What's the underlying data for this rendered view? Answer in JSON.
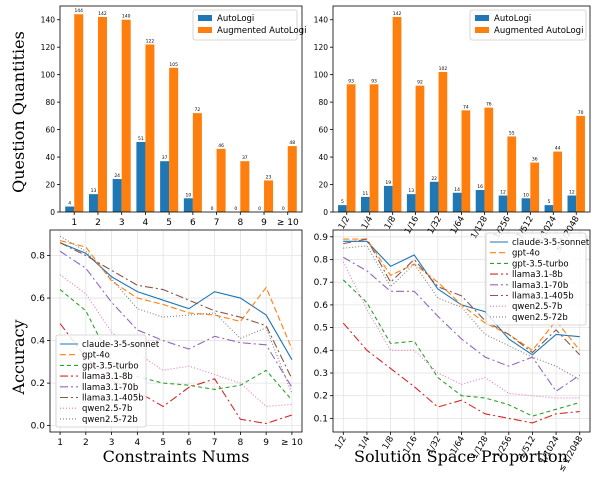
{
  "figure": {
    "shared_ylabel_top": "Question Quantities",
    "shared_ylabel_bottom": "Accuracy"
  },
  "chart_data": [
    {
      "type": "bar",
      "panel": "top-left",
      "categories": [
        "1",
        "2",
        "3",
        "4",
        "5",
        "6",
        "7",
        "8",
        "9",
        "≥ 10"
      ],
      "series": [
        {
          "name": "AutoLogi",
          "color": "#1f77b4",
          "values": [
            4,
            13,
            24,
            51,
            37,
            10,
            0,
            0,
            0,
            0
          ]
        },
        {
          "name": "Augmented AutoLogi",
          "color": "#ff7f0e",
          "values": [
            144,
            142,
            140,
            122,
            105,
            72,
            46,
            37,
            23,
            48
          ]
        }
      ],
      "ylim": [
        0,
        150
      ],
      "yticks": [
        0,
        20,
        40,
        60,
        80,
        100,
        120,
        140
      ],
      "legend": "top-right",
      "grid": false,
      "xlabel": "",
      "ylabel": ""
    },
    {
      "type": "bar",
      "panel": "top-right",
      "categories": [
        "1/2",
        "1/4",
        "1/8",
        "1/16",
        "1/32",
        "1/64",
        "1/128",
        "1/256",
        "1/512",
        "1/1024",
        "≤ 1/2048"
      ],
      "series": [
        {
          "name": "AutoLogi",
          "color": "#1f77b4",
          "values": [
            5,
            11,
            19,
            13,
            22,
            14,
            16,
            12,
            10,
            5,
            12
          ]
        },
        {
          "name": "Augmented AutoLogi",
          "color": "#ff7f0e",
          "values": [
            93,
            93,
            142,
            92,
            102,
            74,
            76,
            55,
            36,
            44,
            70
          ]
        }
      ],
      "ylim": [
        0,
        150
      ],
      "yticks": [
        0,
        20,
        40,
        60,
        80,
        100,
        120,
        140
      ],
      "legend": "top-right",
      "grid": false,
      "xlabel": "",
      "ylabel": ""
    },
    {
      "type": "line",
      "panel": "bottom-left",
      "x": [
        "1",
        "2",
        "3",
        "4",
        "5",
        "6",
        "7",
        "8",
        "9",
        "≥ 10"
      ],
      "series": [
        {
          "name": "claude-3-5-sonnet",
          "color": "#1f77b4",
          "dash": "",
          "values": [
            0.86,
            0.81,
            0.7,
            0.63,
            0.59,
            0.55,
            0.63,
            0.6,
            0.52,
            0.31
          ]
        },
        {
          "name": "gpt-4o",
          "color": "#ff7f0e",
          "dash": "6,3",
          "values": [
            0.87,
            0.84,
            0.68,
            0.6,
            0.57,
            0.53,
            0.52,
            0.49,
            0.65,
            0.36
          ]
        },
        {
          "name": "gpt-3.5-turbo",
          "color": "#2ca02c",
          "dash": "4,3",
          "values": [
            0.64,
            0.54,
            0.3,
            0.23,
            0.2,
            0.19,
            0.17,
            0.19,
            0.26,
            0.12
          ]
        },
        {
          "name": "llama3.1-8b",
          "color": "#d62728",
          "dash": "8,3,2,3",
          "values": [
            0.48,
            0.32,
            0.21,
            0.16,
            0.09,
            0.18,
            0.22,
            0.03,
            0.01,
            0.05
          ]
        },
        {
          "name": "llama3.1-70b",
          "color": "#9467bd",
          "dash": "8,3,2,3",
          "values": [
            0.82,
            0.74,
            0.58,
            0.45,
            0.4,
            0.36,
            0.42,
            0.39,
            0.38,
            0.18
          ]
        },
        {
          "name": "llama3.1-405b",
          "color": "#8c564b",
          "dash": "8,3,2,3",
          "values": [
            0.86,
            0.8,
            0.73,
            0.66,
            0.64,
            0.59,
            0.54,
            0.51,
            0.47,
            0.22
          ]
        },
        {
          "name": "qwen2.5-7b",
          "color": "#e377c2",
          "dash": "1,2",
          "values": [
            0.71,
            0.62,
            0.44,
            0.34,
            0.26,
            0.28,
            0.24,
            0.2,
            0.09,
            0.1
          ]
        },
        {
          "name": "qwen2.5-72b",
          "color": "#7f7f7f",
          "dash": "1,2",
          "values": [
            0.89,
            0.82,
            0.69,
            0.55,
            0.51,
            0.52,
            0.53,
            0.41,
            0.46,
            0.15
          ]
        }
      ],
      "ylim": [
        -0.03,
        0.92
      ],
      "yticks": [
        0.0,
        0.2,
        0.4,
        0.6,
        0.8
      ],
      "ytick_labels": [
        "0.0",
        "0.2",
        "0.4",
        "0.6",
        "0.8"
      ],
      "legend": "lower-left",
      "grid": true,
      "xlabel": "Constraints Nums",
      "ylabel": "Accuracy"
    },
    {
      "type": "line",
      "panel": "bottom-right",
      "x": [
        "1/2",
        "1/4",
        "1/8",
        "1/16",
        "1/32",
        "1/64",
        "1/128",
        "1/256",
        "1/512",
        "1/1024",
        "≤ 1/2048"
      ],
      "series": [
        {
          "name": "claude-3-5-sonnet",
          "color": "#1f77b4",
          "dash": "",
          "values": [
            0.88,
            0.88,
            0.77,
            0.82,
            0.67,
            0.6,
            0.57,
            0.45,
            0.38,
            0.47,
            0.46
          ]
        },
        {
          "name": "gpt-4o",
          "color": "#ff7f0e",
          "dash": "6,3",
          "values": [
            0.89,
            0.89,
            0.73,
            0.78,
            0.7,
            0.6,
            0.52,
            0.47,
            0.4,
            0.53,
            0.4
          ]
        },
        {
          "name": "gpt-3.5-turbo",
          "color": "#2ca02c",
          "dash": "4,3",
          "values": [
            0.71,
            0.61,
            0.43,
            0.44,
            0.28,
            0.2,
            0.19,
            0.16,
            0.11,
            0.14,
            0.17
          ]
        },
        {
          "name": "llama3.1-8b",
          "color": "#d62728",
          "dash": "8,3,2,3",
          "values": [
            0.52,
            0.4,
            0.32,
            0.24,
            0.15,
            0.18,
            0.12,
            0.1,
            0.08,
            0.12,
            0.13
          ]
        },
        {
          "name": "llama3.1-70b",
          "color": "#9467bd",
          "dash": "8,3,2,3",
          "values": [
            0.81,
            0.75,
            0.66,
            0.66,
            0.55,
            0.45,
            0.37,
            0.33,
            0.37,
            0.22,
            0.29
          ]
        },
        {
          "name": "llama3.1-405b",
          "color": "#8c564b",
          "dash": "8,3,2,3",
          "values": [
            0.87,
            0.89,
            0.7,
            0.8,
            0.68,
            0.64,
            0.53,
            0.47,
            0.39,
            0.49,
            0.38
          ]
        },
        {
          "name": "qwen2.5-7b",
          "color": "#e377c2",
          "dash": "1,2",
          "values": [
            0.79,
            0.58,
            0.4,
            0.4,
            0.3,
            0.25,
            0.28,
            0.21,
            0.2,
            0.19,
            0.19
          ]
        },
        {
          "name": "qwen2.5-72b",
          "color": "#7f7f7f",
          "dash": "1,2",
          "values": [
            0.85,
            0.86,
            0.68,
            0.78,
            0.63,
            0.59,
            0.47,
            0.42,
            0.37,
            0.33,
            0.27
          ]
        }
      ],
      "ylim": [
        0.04,
        0.93
      ],
      "yticks": [
        0.1,
        0.2,
        0.3,
        0.4,
        0.5,
        0.6,
        0.7,
        0.8,
        0.9
      ],
      "ytick_labels": [
        "0.1",
        "0.2",
        "0.3",
        "0.4",
        "0.5",
        "0.6",
        "0.7",
        "0.8",
        "0.9"
      ],
      "legend": "top-right",
      "grid": true,
      "xlabel": "Solution Space Proportion",
      "ylabel": ""
    }
  ]
}
